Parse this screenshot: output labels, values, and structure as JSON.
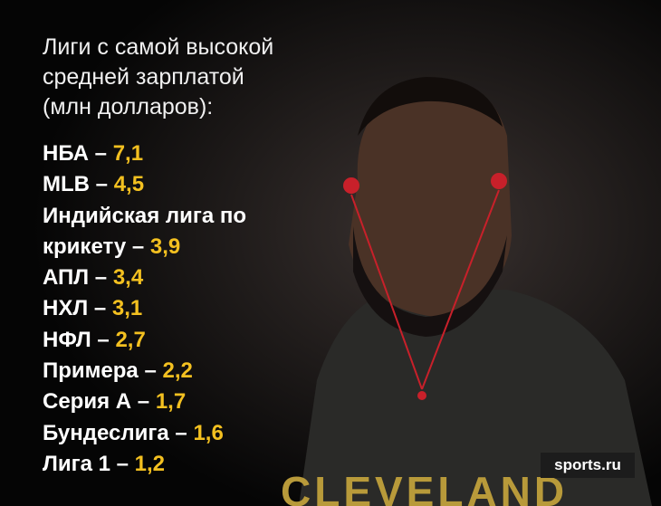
{
  "title_lines": [
    "Лиги с самой высокой",
    "средней зарплатой",
    "(млн долларов):"
  ],
  "separator": "–",
  "items": [
    {
      "name": "НБА",
      "value": "7,1"
    },
    {
      "name": "MLB",
      "value": "4,5"
    },
    {
      "name": "Индийская лига по крикету",
      "value": "3,9"
    },
    {
      "name": "АПЛ",
      "value": "3,4"
    },
    {
      "name": "НХЛ",
      "value": "3,1"
    },
    {
      "name": "НФЛ",
      "value": "2,7"
    },
    {
      "name": "Примера",
      "value": "2,2"
    },
    {
      "name": "Серия А",
      "value": "1,7"
    },
    {
      "name": "Бундеслига",
      "value": "1,6"
    },
    {
      "name": "Лига 1",
      "value": "1,2"
    }
  ],
  "logo": "sports.ru",
  "shirt_text": "CLEVELAND"
}
